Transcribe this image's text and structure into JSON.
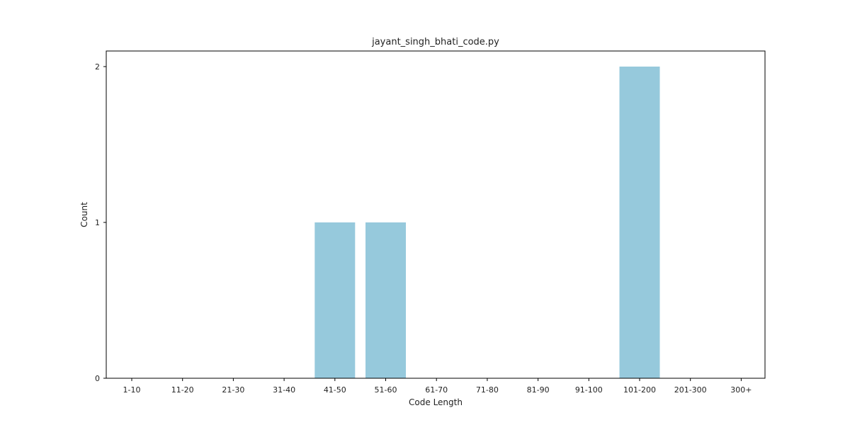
{
  "chart_data": {
    "type": "bar",
    "title": "jayant_singh_bhati_code.py",
    "xlabel": "Code Length",
    "ylabel": "Count",
    "categories": [
      "1-10",
      "11-20",
      "21-30",
      "31-40",
      "41-50",
      "51-60",
      "61-70",
      "71-80",
      "81-90",
      "91-100",
      "101-200",
      "201-300",
      "300+"
    ],
    "values": [
      0,
      0,
      0,
      0,
      1,
      1,
      0,
      0,
      0,
      0,
      2,
      0,
      0
    ],
    "ylim": [
      0,
      2.1
    ],
    "yticks": [
      0,
      1,
      2
    ],
    "bar_color": "#96c9dc",
    "grid": false,
    "legend": "none"
  }
}
